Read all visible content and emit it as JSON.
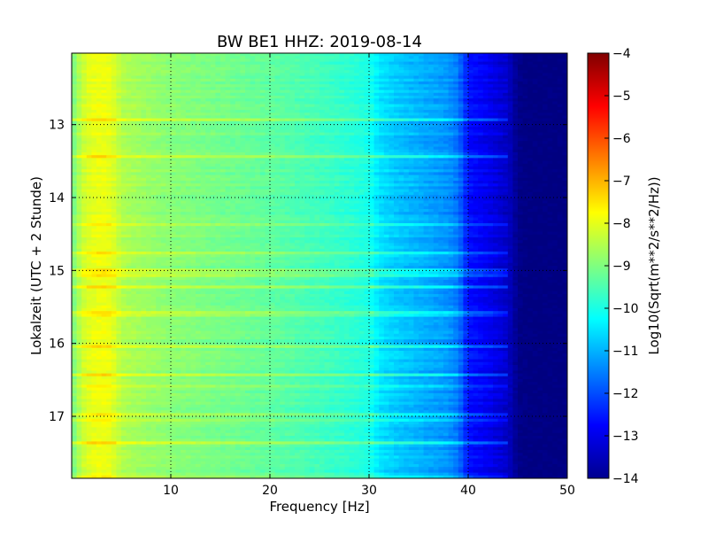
{
  "chart_data": {
    "type": "heatmap",
    "title": "BW BE1 HHZ: 2019-08-14",
    "xlabel": "Frequency [Hz]",
    "ylabel": "Lokalzeit (UTC + 2 Stunde)",
    "xlim": [
      0,
      50
    ],
    "ylim": [
      12.02,
      17.85
    ],
    "y_inverted": true,
    "x_ticks": [
      10,
      20,
      30,
      40,
      50
    ],
    "y_ticks": [
      13,
      14,
      15,
      16,
      17
    ],
    "grid": true,
    "colormap": "jet",
    "colorbar": {
      "label": "Log10(Sqrt(m**2/s**2/Hz))",
      "range": [
        -14,
        -4
      ],
      "ticks": [
        -4,
        -5,
        -6,
        -7,
        -8,
        -9,
        -10,
        -11,
        -12,
        -13,
        -14
      ]
    },
    "spectrum_profile": {
      "frequency_hz": [
        0,
        1,
        2,
        3,
        4,
        5,
        7,
        10,
        15,
        20,
        25,
        28,
        30,
        31,
        33,
        35,
        37,
        38,
        39,
        40,
        42,
        44,
        45,
        46,
        50
      ],
      "log10_amplitude": [
        -9.2,
        -8.3,
        -8.0,
        -7.9,
        -8.0,
        -8.5,
        -8.7,
        -8.9,
        -9.1,
        -9.3,
        -9.6,
        -9.8,
        -10.0,
        -10.5,
        -10.8,
        -11.0,
        -11.2,
        -11.3,
        -11.6,
        -12.6,
        -12.9,
        -13.3,
        -13.9,
        -14.0,
        -14.0
      ]
    }
  }
}
